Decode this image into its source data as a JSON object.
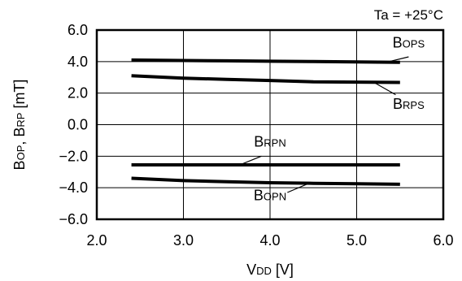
{
  "chart_data": {
    "type": "line",
    "title": "",
    "annotation": "Ta = +25°C",
    "xlabel": "V",
    "xlabel_sub": "DD",
    "xlabel_unit": " [V]",
    "ylabel_parts": [
      {
        "text": "B",
        "sub": "OP"
      },
      {
        "text": ", B",
        "sub": "RP"
      },
      {
        "text": " [mT]",
        "sub": ""
      }
    ],
    "xlim": [
      2.0,
      6.0
    ],
    "ylim": [
      -6.0,
      6.0
    ],
    "xticks": [
      2.0,
      3.0,
      4.0,
      5.0,
      6.0
    ],
    "xtick_labels": [
      "2.0",
      "3.0",
      "4.0",
      "5.0",
      "6.0"
    ],
    "yticks": [
      6.0,
      4.0,
      2.0,
      0.0,
      -2.0,
      -4.0,
      -6.0
    ],
    "ytick_labels": [
      "6.0",
      "4.0",
      "2.0",
      "0.0",
      "−2.0",
      "−4.0",
      "−6.0"
    ],
    "grid": true,
    "series": [
      {
        "name": "B",
        "sub": "OPS",
        "color": "#000000",
        "x": [
          2.4,
          3.0,
          3.5,
          4.0,
          4.5,
          5.0,
          5.5
        ],
        "y": [
          4.1,
          4.07,
          4.05,
          4.02,
          4.0,
          3.98,
          3.95
        ]
      },
      {
        "name": "B",
        "sub": "RPS",
        "color": "#000000",
        "x": [
          2.4,
          3.0,
          3.5,
          4.0,
          4.5,
          5.0,
          5.5
        ],
        "y": [
          3.1,
          2.95,
          2.87,
          2.8,
          2.72,
          2.7,
          2.68
        ]
      },
      {
        "name": "B",
        "sub": "RPN",
        "color": "#000000",
        "x": [
          2.4,
          3.0,
          3.5,
          4.0,
          4.5,
          5.0,
          5.5
        ],
        "y": [
          -2.55,
          -2.55,
          -2.55,
          -2.55,
          -2.55,
          -2.55,
          -2.55
        ]
      },
      {
        "name": "B",
        "sub": "OPN",
        "color": "#000000",
        "x": [
          2.4,
          3.0,
          3.5,
          4.0,
          4.5,
          5.0,
          5.5
        ],
        "y": [
          -3.4,
          -3.55,
          -3.62,
          -3.68,
          -3.72,
          -3.75,
          -3.78
        ]
      }
    ],
    "series_labels": [
      {
        "series": 0,
        "label_x": 5.6,
        "label_y": 4.9,
        "leader_from": [
          5.6,
          4.3
        ],
        "leader_to": [
          5.35,
          3.97
        ]
      },
      {
        "series": 1,
        "label_x": 5.6,
        "label_y": 1.0,
        "leader_from": [
          5.45,
          1.9
        ],
        "leader_to": [
          5.2,
          2.68
        ]
      },
      {
        "series": 2,
        "label_x": 4.0,
        "label_y": -1.4,
        "leader_from": [
          3.9,
          -2.0
        ],
        "leader_to": [
          3.65,
          -2.55
        ]
      },
      {
        "series": 3,
        "label_x": 4.0,
        "label_y": -4.8,
        "leader_from": [
          4.2,
          -4.3
        ],
        "leader_to": [
          4.45,
          -3.72
        ]
      }
    ]
  }
}
